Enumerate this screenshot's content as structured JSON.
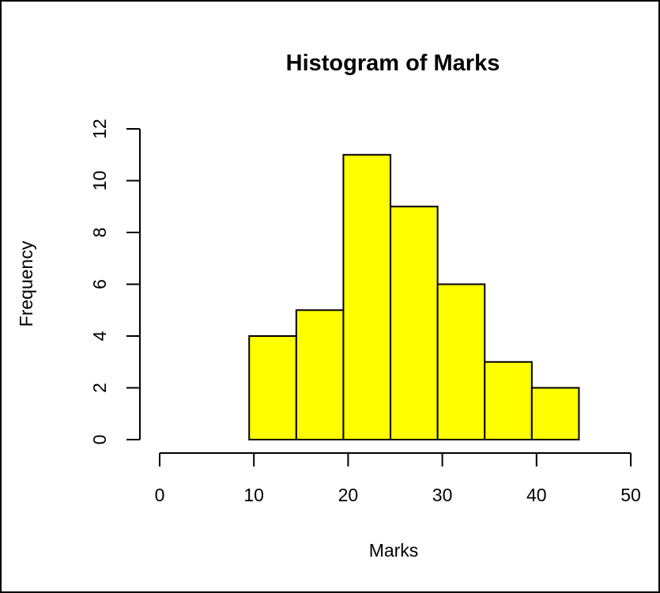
{
  "chart_data": {
    "type": "bar",
    "title": "Histogram of Marks",
    "xlabel": "Marks",
    "ylabel": "Frequency",
    "bins": [
      {
        "from": 9.5,
        "to": 14.5,
        "value": 4
      },
      {
        "from": 14.5,
        "to": 19.5,
        "value": 5
      },
      {
        "from": 19.5,
        "to": 24.5,
        "value": 11
      },
      {
        "from": 24.5,
        "to": 29.5,
        "value": 9
      },
      {
        "from": 29.5,
        "to": 34.5,
        "value": 6
      },
      {
        "from": 34.5,
        "to": 39.5,
        "value": 3
      },
      {
        "from": 39.5,
        "to": 44.5,
        "value": 2
      }
    ],
    "xlim": [
      0,
      50
    ],
    "ylim": [
      0,
      12
    ],
    "xticks": [
      "0",
      "10",
      "20",
      "30",
      "40",
      "50"
    ],
    "yticks": [
      "0",
      "2",
      "4",
      "6",
      "8",
      "10",
      "12"
    ],
    "bar_color": "#ffff00",
    "edge_color": "#000000",
    "grid": false,
    "legend": "none"
  }
}
